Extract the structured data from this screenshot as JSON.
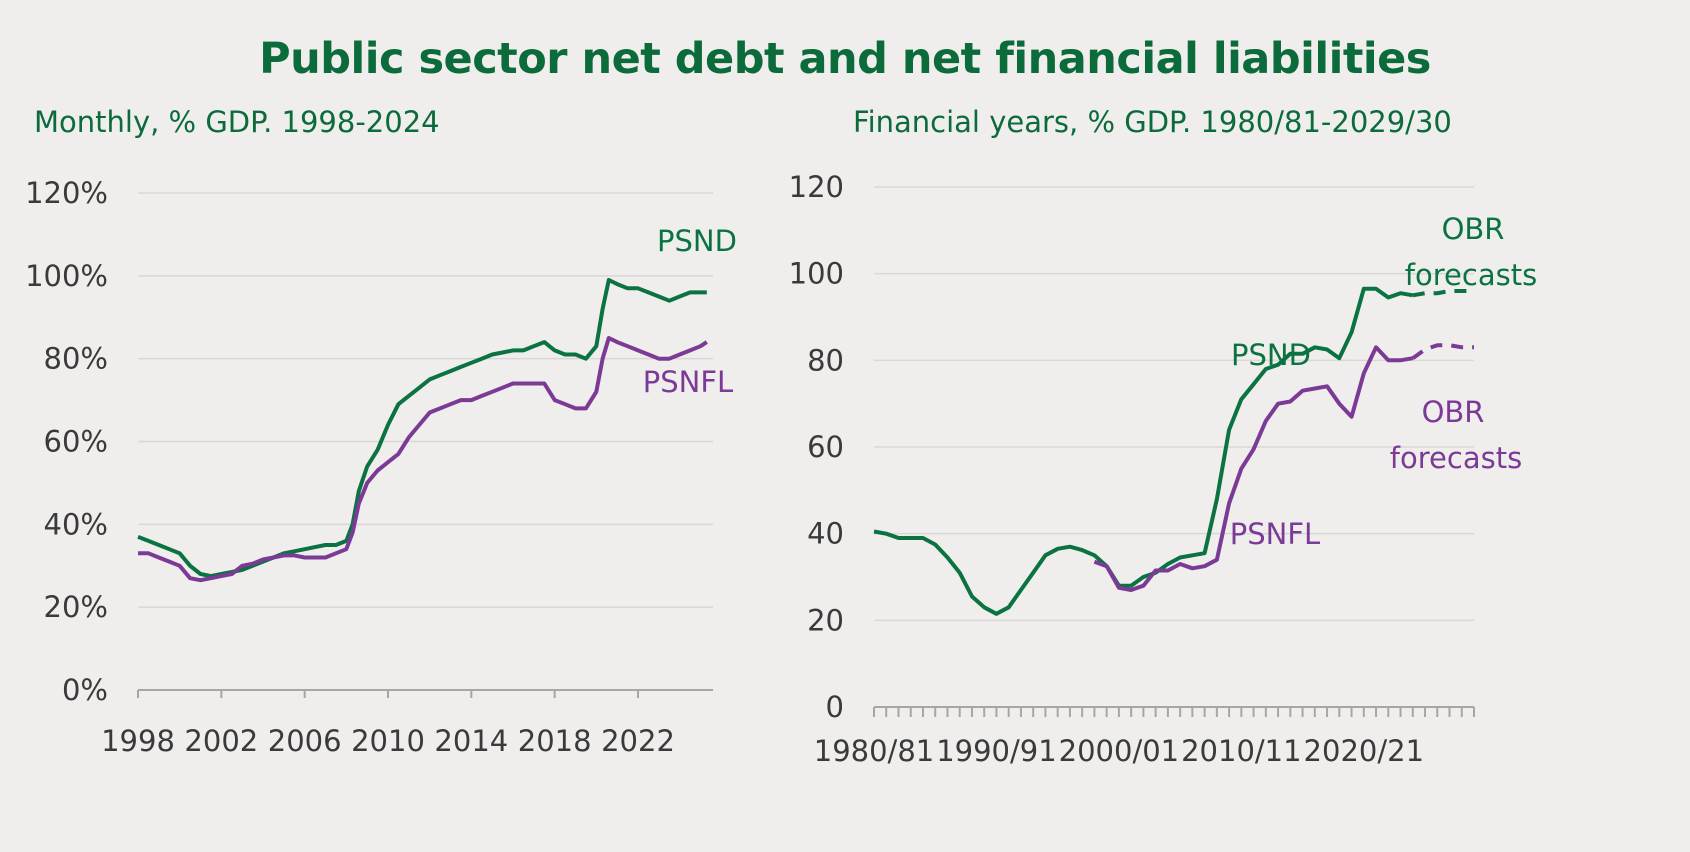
{
  "header": {
    "title": "Public sector net debt and net financial liabilities"
  },
  "colors": {
    "psnd": "#0b7242",
    "psnfl": "#7a3a96",
    "grid": "#d9d7d6",
    "axis": "#a8a6a5",
    "text": "#3a3a3a",
    "title": "#0b6b3a"
  },
  "chart_data": [
    {
      "type": "line",
      "subtitle": "Monthly, % GDP. 1998-2024",
      "yticks": [
        "0%",
        "20%",
        "40%",
        "60%",
        "80%",
        "100%",
        "120%"
      ],
      "ytick_values": [
        0,
        20,
        40,
        60,
        80,
        100,
        120
      ],
      "ylim": [
        0,
        120
      ],
      "xlim": [
        1998,
        2025.6
      ],
      "xticks": [
        "1998",
        "2002",
        "2006",
        "2010",
        "2014",
        "2018",
        "2022"
      ],
      "xtick_values": [
        1998,
        2002,
        2006,
        2010,
        2014,
        2018,
        2022
      ],
      "annotations": [
        {
          "text": "PSND",
          "series": "PSND"
        },
        {
          "text": "PSNFL",
          "series": "PSNFL"
        }
      ],
      "series": [
        {
          "name": "PSND",
          "x": [
            1998,
            1998.5,
            1999,
            1999.5,
            2000,
            2000.5,
            2001,
            2001.5,
            2002,
            2002.5,
            2003,
            2003.5,
            2004,
            2004.5,
            2005,
            2005.5,
            2006,
            2006.5,
            2007,
            2007.5,
            2008,
            2008.3,
            2008.6,
            2009,
            2009.5,
            2010,
            2010.5,
            2011,
            2011.5,
            2012,
            2012.5,
            2013,
            2013.5,
            2014,
            2014.5,
            2015,
            2015.5,
            2016,
            2016.5,
            2017,
            2017.5,
            2018,
            2018.5,
            2019,
            2019.5,
            2020,
            2020.3,
            2020.6,
            2021,
            2021.5,
            2022,
            2022.5,
            2023,
            2023.5,
            2024,
            2024.5,
            2025,
            2025.3
          ],
          "values": [
            37,
            36,
            35,
            34,
            33,
            30,
            28,
            27.5,
            28,
            28.5,
            29,
            30,
            31,
            32,
            33,
            33.5,
            34,
            34.5,
            35,
            35,
            36,
            40,
            48,
            54,
            58,
            64,
            69,
            71,
            73,
            75,
            76,
            77,
            78,
            79,
            80,
            81,
            81.5,
            82,
            82,
            83,
            84,
            82,
            81,
            81,
            80,
            83,
            92,
            99,
            98,
            97,
            97,
            96,
            95,
            94,
            95,
            96,
            96,
            96
          ]
        },
        {
          "name": "PSNFL",
          "x": [
            1998,
            1998.5,
            1999,
            1999.5,
            2000,
            2000.5,
            2001,
            2001.5,
            2002,
            2002.5,
            2003,
            2003.5,
            2004,
            2004.5,
            2005,
            2005.5,
            2006,
            2006.5,
            2007,
            2007.5,
            2008,
            2008.3,
            2008.6,
            2009,
            2009.5,
            2010,
            2010.5,
            2011,
            2011.5,
            2012,
            2012.5,
            2013,
            2013.5,
            2014,
            2014.5,
            2015,
            2015.5,
            2016,
            2016.5,
            2017,
            2017.5,
            2018,
            2018.5,
            2019,
            2019.5,
            2020,
            2020.3,
            2020.6,
            2021,
            2021.5,
            2022,
            2022.5,
            2023,
            2023.5,
            2024,
            2024.5,
            2025,
            2025.3
          ],
          "values": [
            33,
            33,
            32,
            31,
            30,
            27,
            26.5,
            27,
            27.5,
            28,
            30,
            30.5,
            31.5,
            32,
            32.5,
            32.5,
            32,
            32,
            32,
            33,
            34,
            38,
            45,
            50,
            53,
            55,
            57,
            61,
            64,
            67,
            68,
            69,
            70,
            70,
            71,
            72,
            73,
            74,
            74,
            74,
            74,
            70,
            69,
            68,
            68,
            72,
            80,
            85,
            84,
            83,
            82,
            81,
            80,
            80,
            81,
            82,
            83,
            84
          ]
        }
      ]
    },
    {
      "type": "line",
      "subtitle": "Financial years, % GDP. 1980/81-2029/30",
      "yticks": [
        "0",
        "20",
        "40",
        "60",
        "80",
        "100",
        "120"
      ],
      "ytick_values": [
        0,
        20,
        40,
        60,
        80,
        100,
        120
      ],
      "ylim": [
        0,
        120
      ],
      "x_categories": 50,
      "xticks": [
        "1980/81",
        "1990/91",
        "2000/01",
        "2010/11",
        "2020/21"
      ],
      "xtick_indices": [
        0,
        10,
        20,
        30,
        40
      ],
      "annotations": [
        {
          "text": "OBR",
          "series": "PSND"
        },
        {
          "text": "forecasts",
          "series": "PSND"
        },
        {
          "text": "PSND",
          "series": "PSND"
        },
        {
          "text": "OBR",
          "series": "PSNFL"
        },
        {
          "text": "forecasts",
          "series": "PSNFL"
        },
        {
          "text": "PSNFL",
          "series": "PSNFL"
        }
      ],
      "forecast_start_index": 44,
      "series": [
        {
          "name": "PSND",
          "x": [
            0,
            1,
            2,
            3,
            4,
            5,
            6,
            7,
            8,
            9,
            10,
            11,
            12,
            13,
            14,
            15,
            16,
            17,
            18,
            19,
            20,
            21,
            22,
            23,
            24,
            25,
            26,
            27,
            28,
            29,
            30,
            31,
            32,
            33,
            34,
            35,
            36,
            37,
            38,
            39,
            40,
            41,
            42,
            43,
            44,
            45,
            46,
            47,
            48,
            49
          ],
          "values": [
            40.5,
            40,
            39,
            39,
            39,
            37.5,
            34.5,
            31,
            25.5,
            23,
            21.5,
            23,
            27,
            31,
            35,
            36.5,
            37,
            36.2,
            35,
            32.5,
            28,
            28,
            30,
            31,
            33,
            34.5,
            35,
            35.5,
            48,
            64,
            71,
            74.5,
            78,
            79,
            81.5,
            81.5,
            83,
            82.5,
            80.5,
            86.5,
            96.5,
            96.5,
            94.5,
            95.5,
            95,
            95.5,
            95.5,
            96,
            96,
            96
          ]
        },
        {
          "name": "PSNFL",
          "x": [
            18,
            19,
            20,
            21,
            22,
            23,
            24,
            25,
            26,
            27,
            28,
            29,
            30,
            31,
            32,
            33,
            34,
            35,
            36,
            37,
            38,
            39,
            40,
            41,
            42,
            43,
            44,
            45,
            46,
            47,
            48,
            49
          ],
          "values": [
            33.5,
            32.5,
            27.5,
            27,
            28,
            31.5,
            31.5,
            33,
            32,
            32.5,
            34,
            47,
            55,
            59.5,
            66,
            70,
            70.5,
            73,
            73.5,
            74,
            70,
            67,
            77,
            83,
            80,
            80,
            80.5,
            82.5,
            83.5,
            83.5,
            83,
            83
          ]
        }
      ]
    }
  ]
}
